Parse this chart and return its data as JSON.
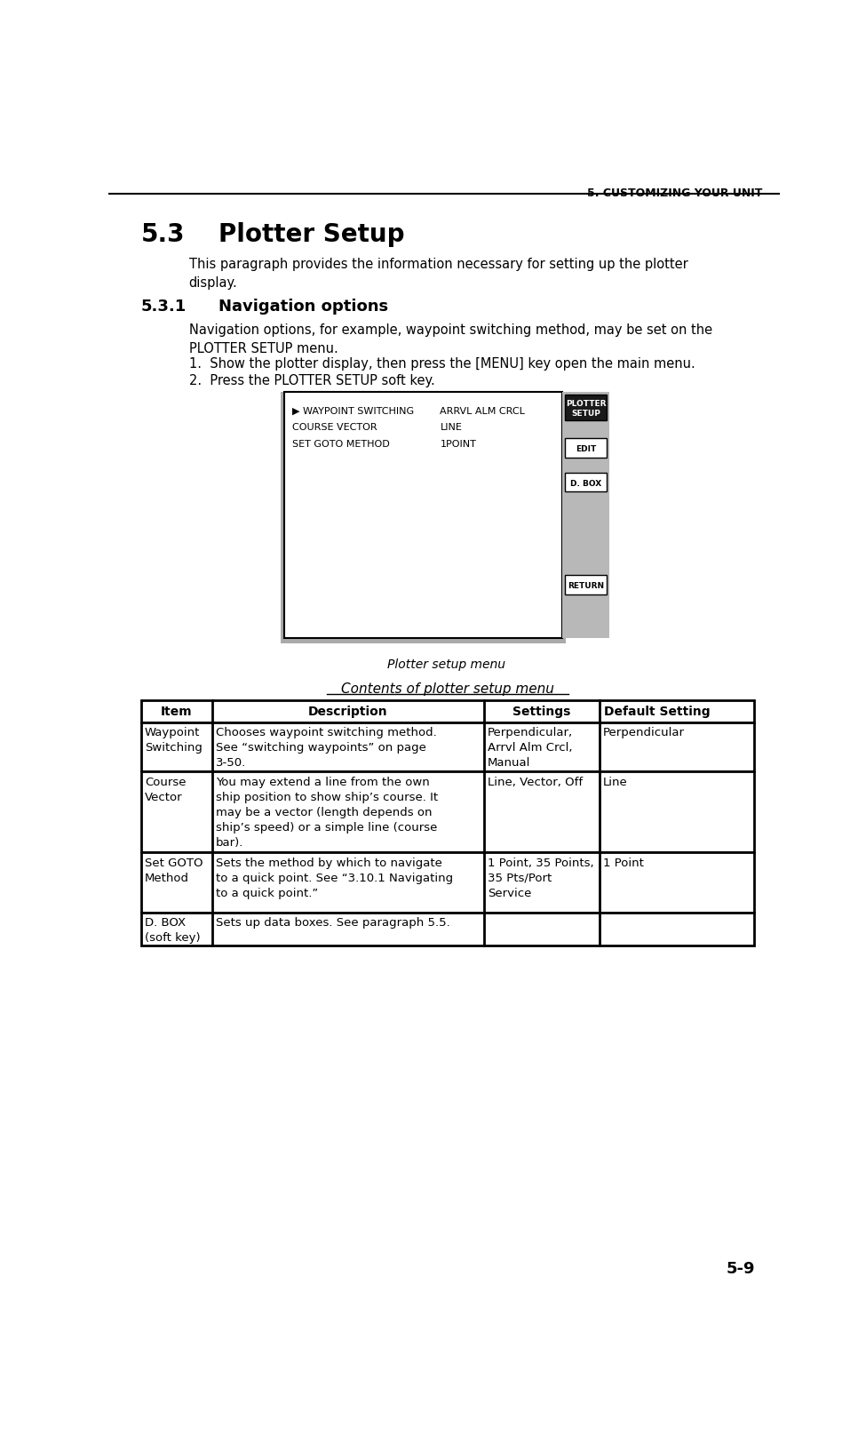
{
  "page_header": "5. CUSTOMIZING YOUR UNIT",
  "section_num": "5.3",
  "section_title": "Plotter Setup",
  "section_body": "This paragraph provides the information necessary for setting up the plotter\ndisplay.",
  "subsection_num": "5.3.1",
  "subsection_title": "Navigation options",
  "subsection_body": "Navigation options, for example, waypoint switching method, may be set on the\nPLOTTER SETUP menu.",
  "steps": [
    "1.  Show the plotter display, then press the [MENU] key open the main menu.",
    "2.  Press the PLOTTER SETUP soft key."
  ],
  "menu_items_left": [
    "▶ WAYPOINT SWITCHING",
    "COURSE VECTOR",
    "SET GOTO METHOD"
  ],
  "menu_items_right": [
    "ARRVL ALM CRCL",
    "LINE",
    "1POINT"
  ],
  "menu_softkeys": [
    "PLOTTER\nSETUP",
    "EDIT",
    "D. BOX",
    "RETURN"
  ],
  "menu_caption": "Plotter setup menu",
  "table_title": "Contents of plotter setup menu",
  "table_headers": [
    "Item",
    "Description",
    "Settings",
    "Default Setting"
  ],
  "table_rows": [
    {
      "item": "Waypoint\nSwitching",
      "description": "Chooses waypoint switching method.\nSee “switching waypoints” on page\n3-50.",
      "settings": "Perpendicular,\nArrvl Alm Crcl,\nManual",
      "default": "Perpendicular"
    },
    {
      "item": "Course\nVector",
      "description": "You may extend a line from the own\nship position to show ship’s course. It\nmay be a vector (length depends on\nship’s speed) or a simple line (course\nbar).",
      "settings": "Line, Vector, Off",
      "default": "Line"
    },
    {
      "item": "Set GOTO\nMethod",
      "description": "Sets the method by which to navigate\nto a quick point. See “3.10.1 Navigating\nto a quick point.”",
      "settings": "1 Point, 35 Points,\n35 Pts/Port\nService",
      "default": "1 Point"
    },
    {
      "item": "D. BOX\n(soft key)",
      "description": "Sets up data boxes. See paragraph 5.5.",
      "settings": "",
      "default": ""
    }
  ],
  "page_number": "5-9",
  "bg_color": "#ffffff",
  "text_color": "#000000",
  "menu_softkey_bg": "#b8b8b8",
  "menu_highlight_bg": "#1a1a1a"
}
